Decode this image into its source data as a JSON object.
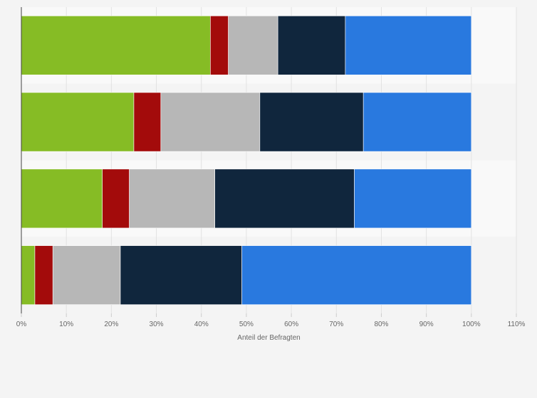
{
  "chart_data": {
    "type": "bar",
    "orientation": "horizontal",
    "stacked": true,
    "title": "",
    "xlabel": "Anteil der Befragten",
    "ylabel": "",
    "xlim": [
      0,
      110
    ],
    "x_ticks": [
      "0%",
      "10%",
      "20%",
      "30%",
      "40%",
      "50%",
      "60%",
      "70%",
      "80%",
      "90%",
      "100%",
      "110%"
    ],
    "category_count": 4,
    "categories": [
      "",
      "",
      "",
      ""
    ],
    "grid": true,
    "legend": "none",
    "series": [
      {
        "color": "#86bc25",
        "values": [
          42,
          25,
          18,
          3
        ]
      },
      {
        "color": "#a30b0b",
        "values": [
          4,
          6,
          6,
          4
        ]
      },
      {
        "color": "#b7b7b7",
        "values": [
          11,
          22,
          19,
          15
        ]
      },
      {
        "color": "#10263d",
        "values": [
          15,
          23,
          31,
          27
        ]
      },
      {
        "color": "#2979df",
        "values": [
          28,
          24,
          26,
          51
        ]
      }
    ]
  }
}
